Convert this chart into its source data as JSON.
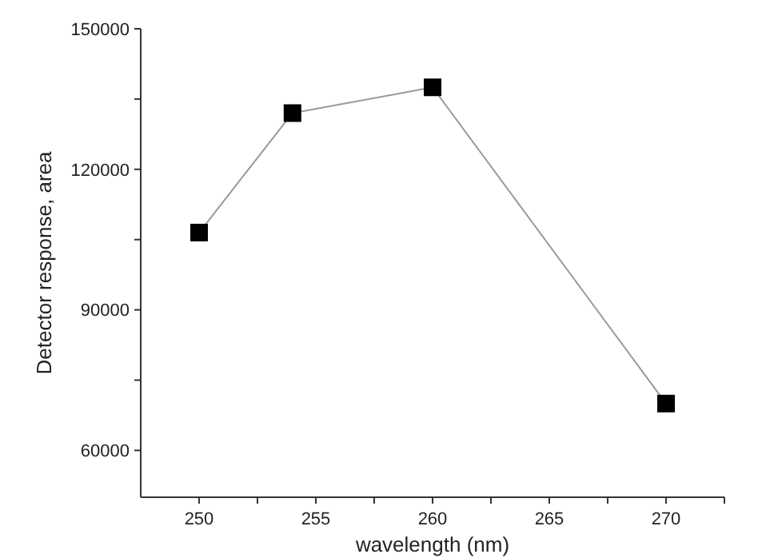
{
  "chart_data": {
    "type": "line",
    "xlabel": "wavelength (nm)",
    "ylabel": "Detector response, area",
    "x": [
      250,
      254,
      260,
      270
    ],
    "series": [
      {
        "color": "#000000",
        "values": [
          106500,
          132000,
          137500,
          70000
        ]
      }
    ],
    "xlim": [
      247.5,
      272.5
    ],
    "xticks": [
      250,
      {
        "value": 252.5,
        "label": null
      },
      255,
      {
        "value": 257.5,
        "label": null
      },
      260,
      {
        "value": 262.5,
        "label": null
      },
      265,
      {
        "value": 267.5,
        "label": null
      },
      270,
      {
        "value": 272.5,
        "label": null
      }
    ],
    "ylim": [
      50000,
      150000
    ],
    "yticks": [
      {
        "value": 60000,
        "label": "60000"
      },
      {
        "value": 75000,
        "label": null
      },
      {
        "value": 90000,
        "label": "90000"
      },
      {
        "value": 105000,
        "label": null
      },
      {
        "value": 120000,
        "label": "120000"
      },
      {
        "value": 135000,
        "label": null
      },
      {
        "value": 150000,
        "label": "150000"
      }
    ],
    "marker": "square",
    "grid": false
  }
}
